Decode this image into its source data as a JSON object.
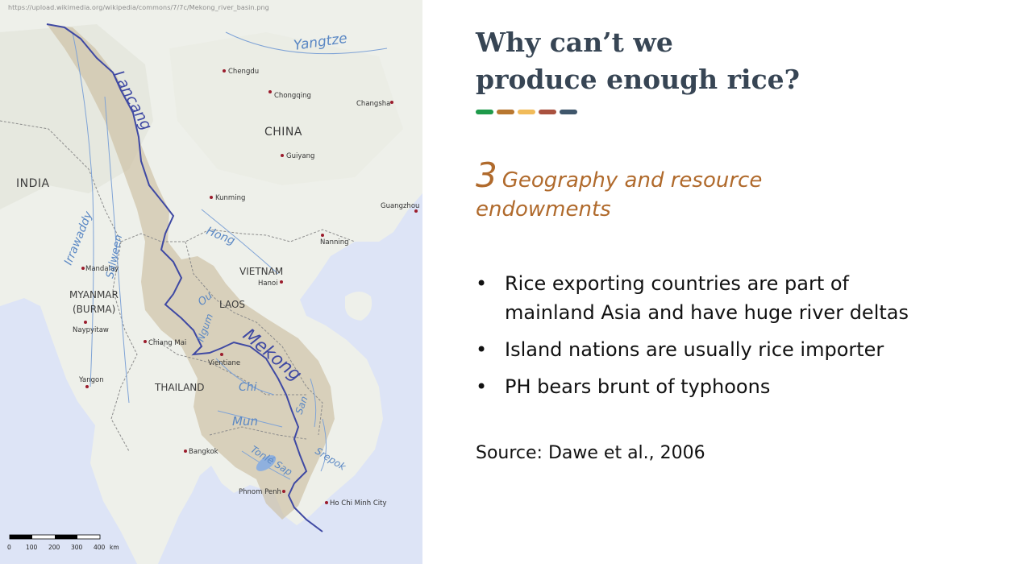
{
  "map": {
    "url": "https://upload.wikimedia.org/wikipedia/commons/7/7c/Mekong_river_basin.png",
    "countries": {
      "india": "INDIA",
      "china": "CHINA",
      "vietnam": "VIETNAM",
      "laos": "LAOS",
      "myanmar": "MYANMAR",
      "burma": "(BURMA)",
      "thailand": "THAILAND"
    },
    "cities": {
      "chengdu": "Chengdu",
      "chongqing": "Chongqing",
      "changsha": "Changsha",
      "guiyang": "Guiyang",
      "kunming": "Kunming",
      "guangzhou": "Guangzhou",
      "nanning": "Nanning",
      "hanoi": "Hanoi",
      "mandalay": "Mandalay",
      "naypyitaw": "Naypyitaw",
      "chiang_mai": "Chiang Mai",
      "vientiane": "Vientiane",
      "yangon": "Yangon",
      "bangkok": "Bangkok",
      "phnom_penh": "Phnom Penh",
      "ho_chi_minh": "Ho Chi Minh City"
    },
    "rivers": {
      "yangtze": "Yangtze",
      "lancang": "Lancang",
      "irrawaddy": "Irrawaddy",
      "salween": "Salween",
      "hong": "Hong",
      "ou": "Ou",
      "ngum": "Ngum",
      "mekong": "Mekong",
      "chi": "Chi",
      "mun": "Mun",
      "san": "San",
      "tonle_sap": "Tonlé Sap",
      "srepok": "Srepok"
    },
    "scale": {
      "ticks": [
        "0",
        "100",
        "200",
        "300",
        "400"
      ],
      "unit": "km"
    }
  },
  "slide": {
    "title_line1": "Why can’t we",
    "title_line2": "produce enough rice?",
    "dot_colors": [
      "#1e9a4a",
      "#b87730",
      "#f1bb5a",
      "#a9513f",
      "#3f566b"
    ],
    "subhead_number": "3",
    "subhead_text1": "Geography and resource",
    "subhead_text2": "endowments",
    "bullet_char": "•",
    "bullets": [
      [
        "Rice exporting countries are part of",
        "mainland Asia and have huge river deltas"
      ],
      [
        "Island nations are usually rice importer"
      ],
      [
        "PH bears brunt of typhoons"
      ]
    ],
    "source": "Source: Dawe et al., 2006"
  }
}
